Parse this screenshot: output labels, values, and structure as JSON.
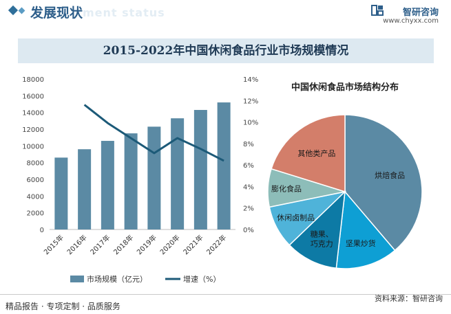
{
  "header": {
    "title": "发展现状",
    "subtitle_en": "ment status",
    "brand_name": "智研咨询",
    "brand_url": "www.chyxx.com"
  },
  "figure_title": "2015-2022年中国休闲食品行业市场规模情况",
  "chart_data": [
    {
      "type": "bar",
      "categories": [
        "2015年",
        "2016年",
        "2017年",
        "2018年",
        "2019年",
        "2020年",
        "2021年",
        "2022年"
      ],
      "series": [
        {
          "name": "市场规模（亿元）",
          "axis": "left",
          "type": "bar",
          "values": [
            8600,
            9600,
            10600,
            11500,
            12300,
            13300,
            14300,
            15200
          ]
        },
        {
          "name": "增速（%）",
          "axis": "right",
          "type": "line",
          "values": [
            null,
            11.6,
            9.9,
            8.5,
            7.1,
            8.5,
            7.5,
            6.4
          ]
        }
      ],
      "y_left": {
        "min": 0,
        "max": 18000,
        "ticks": [
          "0",
          "2000",
          "4000",
          "6000",
          "8000",
          "10000",
          "12000",
          "14000",
          "16000",
          "18000"
        ]
      },
      "y_right": {
        "min": 0,
        "max": 14,
        "ticks": [
          "0%",
          "2%",
          "4%",
          "6%",
          "8%",
          "10%",
          "12%",
          "14%"
        ]
      },
      "legend": [
        "市场规模（亿元）",
        "增速（%）"
      ],
      "legend_position": "bottom",
      "grid": false
    },
    {
      "type": "pie",
      "title": "中国休闲食品市场结构分布",
      "slices": [
        {
          "label": "烘焙食品",
          "value": 38.8
        },
        {
          "label": "坚果炒货",
          "value": 13.0
        },
        {
          "label": "糖果、巧克力",
          "value": 11.0
        },
        {
          "label": "休闲卤制品",
          "value": 9.0
        },
        {
          "label": "膨化食品",
          "value": 8.0
        },
        {
          "label": "其他类产品",
          "value": 20.2
        }
      ]
    }
  ],
  "colors": {
    "bar": "#5b8aa4",
    "line": "#1c5a78",
    "pie": [
      "#5b8aa4",
      "#0e9fd4",
      "#0d7aa5",
      "#4fb3d9",
      "#8dbdb9",
      "#d37e6a"
    ]
  },
  "footer": {
    "left": "精品报告 · 专项定制 · 品质服务",
    "source": "资料来源：智研咨询"
  }
}
